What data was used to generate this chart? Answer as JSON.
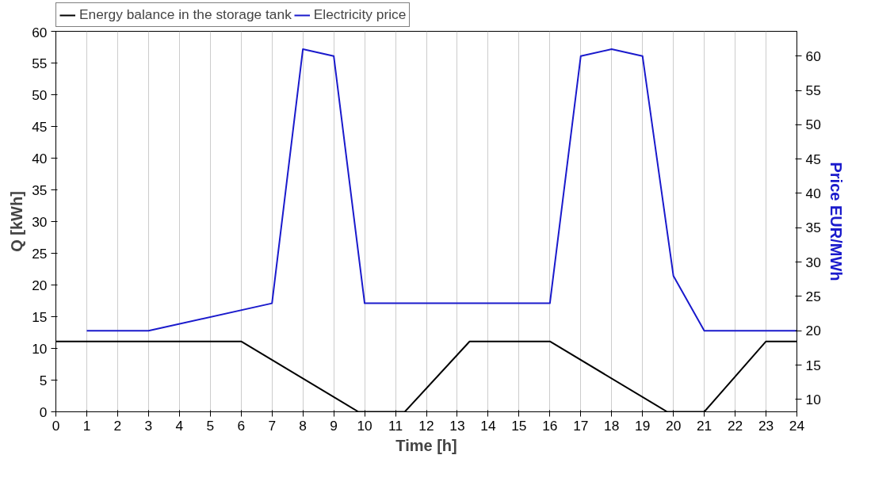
{
  "chart_data": {
    "type": "line",
    "xlabel": "Time [h]",
    "ylabel": "Q [kWh]",
    "y2label": "Price EUR/MWh",
    "xlim": [
      0,
      24
    ],
    "xticks": [
      0,
      1,
      2,
      3,
      4,
      5,
      6,
      7,
      8,
      9,
      10,
      11,
      12,
      13,
      14,
      15,
      16,
      17,
      18,
      19,
      20,
      21,
      22,
      23,
      24
    ],
    "ylim": [
      0,
      60
    ],
    "yticks": [
      0,
      5,
      10,
      15,
      20,
      25,
      30,
      35,
      40,
      45,
      50,
      55,
      60
    ],
    "y2lim": [
      8.2,
      63.6
    ],
    "y2ticks": [
      10,
      15,
      20,
      25,
      30,
      35,
      40,
      45,
      50,
      55,
      60
    ],
    "grid": "x",
    "legend": "top left",
    "series": [
      {
        "name": "Energy balance in the storage tank",
        "color": "#000000",
        "x": [
          0,
          6,
          9.8,
          11.3,
          13.4,
          16,
          19.8,
          20.2,
          21,
          23,
          24
        ],
        "values": [
          11.1,
          11.1,
          0,
          0,
          11.1,
          11.1,
          0,
          0,
          0,
          11.1,
          11.1
        ]
      },
      {
        "name": "Electricity price",
        "color": "#1a1acc",
        "axis": "y2",
        "x": [
          1,
          3,
          7,
          8,
          9,
          10,
          16,
          17,
          18,
          19,
          20,
          21,
          24
        ],
        "values": [
          20,
          20,
          24,
          61,
          60,
          24,
          24,
          60,
          61,
          60,
          28,
          20,
          20
        ]
      }
    ]
  }
}
